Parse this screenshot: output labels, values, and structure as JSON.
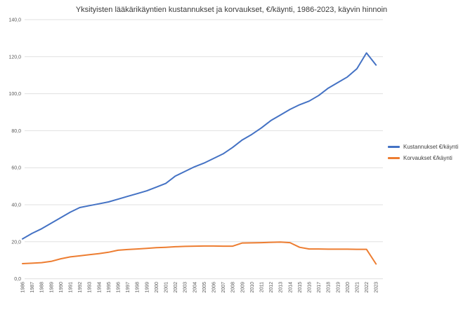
{
  "chart_data": {
    "type": "line",
    "title": "Yksityisten lääkärikäyntien kustannukset ja korvaukset, €/käynti, 1986-2023, käyvin hinnoin",
    "x": [
      "1986",
      "1987",
      "1988",
      "1989",
      "1990",
      "1991",
      "1992",
      "1993",
      "1994",
      "1995",
      "1996",
      "1997",
      "1998",
      "1999",
      "2000",
      "2001",
      "2002",
      "2003",
      "2004",
      "2005",
      "2006",
      "2007",
      "2008",
      "2009",
      "2010",
      "2011",
      "2012",
      "2013",
      "2014",
      "2015",
      "2016",
      "2017",
      "2018",
      "2019",
      "2020",
      "2021",
      "2022",
      "2023"
    ],
    "series": [
      {
        "name": "Kustannukset €/käynti",
        "color": "#4472C4",
        "values": [
          21.5,
          24.5,
          27,
          30,
          33,
          36,
          38.5,
          39.5,
          40.5,
          41.5,
          43,
          44.5,
          46,
          47.5,
          49.5,
          51.5,
          55.5,
          58,
          60.5,
          62.5,
          65,
          67.5,
          71,
          75,
          78,
          81.5,
          85.5,
          88.5,
          91.5,
          94,
          96,
          99,
          103,
          106,
          109,
          113.5,
          122,
          115.5
        ]
      },
      {
        "name": "Korvaukset €/käynti",
        "color": "#ED7D31",
        "values": [
          8.2,
          8.4,
          8.7,
          9.4,
          10.8,
          11.8,
          12.4,
          13,
          13.6,
          14.3,
          15.4,
          15.8,
          16.1,
          16.4,
          16.8,
          17,
          17.3,
          17.5,
          17.6,
          17.7,
          17.7,
          17.6,
          17.6,
          19.3,
          19.4,
          19.5,
          19.7,
          19.8,
          19.5,
          17,
          16.1,
          16.1,
          16,
          16,
          16,
          15.9,
          15.9,
          8
        ]
      }
    ],
    "ylim": [
      0,
      140
    ],
    "ytick_step": 20,
    "ytick_labels": [
      "0,0",
      "20,0",
      "40,0",
      "60,0",
      "80,0",
      "100,0",
      "120,0",
      "140,0"
    ],
    "xlabel": "",
    "ylabel": "",
    "grid": "horizontal",
    "legend_position": "right",
    "gridline_color": "#E0E0E0",
    "axis_text_color": "#595959",
    "title_color": "#3b3b3b"
  }
}
